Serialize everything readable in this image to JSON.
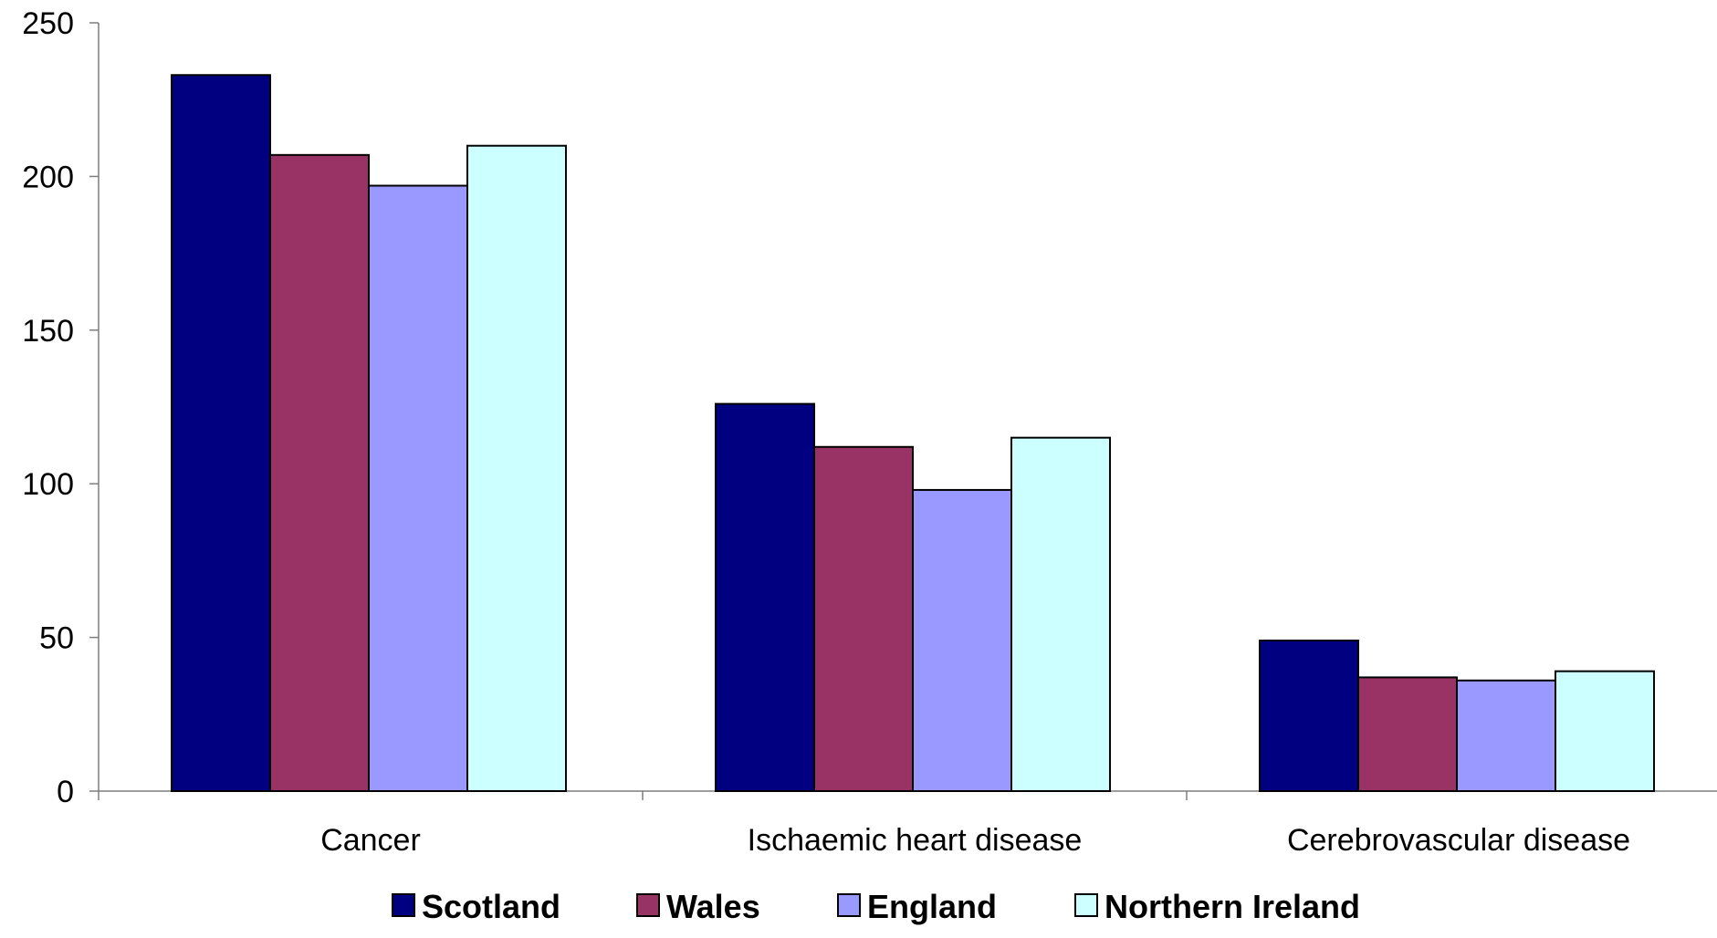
{
  "chart_data": {
    "type": "bar",
    "categories": [
      "Cancer",
      "Ischaemic heart disease",
      "Cerebrovascular disease"
    ],
    "series": [
      {
        "name": "Scotland",
        "color": "#000080",
        "values": [
          233,
          126,
          49
        ]
      },
      {
        "name": "Wales",
        "color": "#993366",
        "values": [
          207,
          112,
          37
        ]
      },
      {
        "name": "England",
        "color": "#9999FF",
        "values": [
          197,
          98,
          36
        ]
      },
      {
        "name": "Northern Ireland",
        "color": "#CCFFFF",
        "values": [
          210,
          115,
          39
        ]
      }
    ],
    "yticks": [
      "0",
      "50",
      "100",
      "150",
      "200",
      "250"
    ],
    "ylim": [
      0,
      250
    ],
    "grid": false,
    "legend_position": "bottom",
    "title": "",
    "xlabel": "",
    "ylabel": ""
  }
}
